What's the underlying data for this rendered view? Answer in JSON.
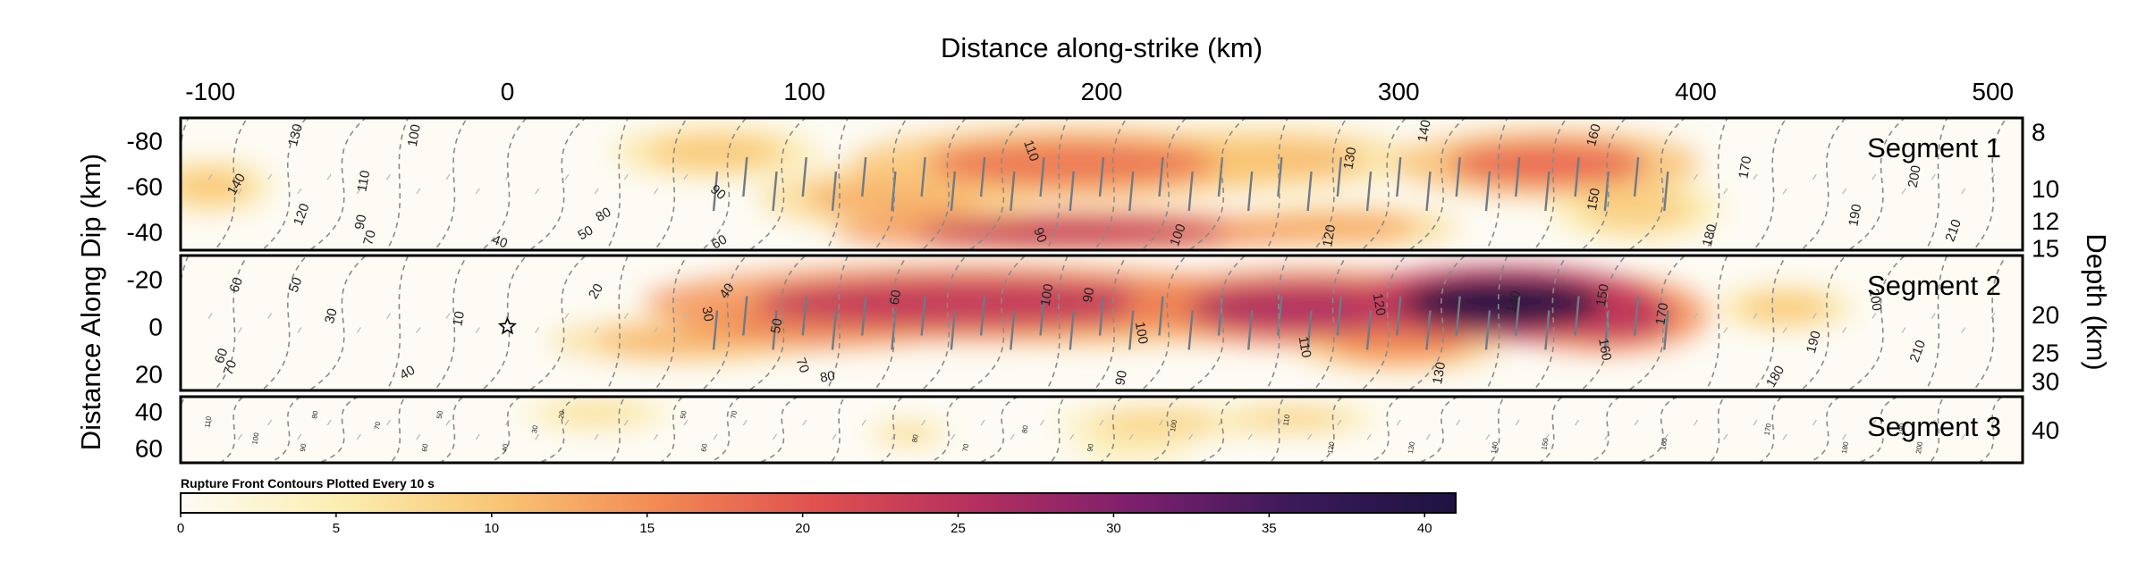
{
  "chart_data": {
    "type": "heatmap",
    "title": "",
    "xlabel": "Distance along-strike (km)",
    "ylabel_left": "Distance Along Dip (km)",
    "ylabel_right": "Depth (km)",
    "xlim": [
      -110,
      510
    ],
    "x_ticks": [
      -100,
      0,
      100,
      200,
      300,
      400,
      500
    ],
    "colorbar": {
      "title": "Rupture Front Contours Plotted Every 10 s",
      "range": [
        0,
        41
      ],
      "ticks": [
        0,
        5,
        10,
        15,
        20,
        25,
        30,
        35,
        40
      ],
      "colors": [
        "#fdfbf4",
        "#fbeeb0",
        "#f9c574",
        "#f28954",
        "#e0504f",
        "#b42f5f",
        "#7c1f6e",
        "#3a1a5a",
        "#1d1340"
      ]
    },
    "contour_interval_s": 10,
    "hypocenter": {
      "x_km": 0,
      "dip_km": 0,
      "marker": "star"
    },
    "panels": [
      {
        "name": "Segment 1",
        "dip_range": [
          -90,
          -32
        ],
        "dip_ticks": [
          -80,
          -60,
          -40
        ],
        "depth_ticks": [
          {
            "value": "8",
            "dip": -84
          },
          {
            "value": "10",
            "dip": -59
          },
          {
            "value": "12",
            "dip": -45
          },
          {
            "value": "15",
            "dip": -33
          }
        ],
        "slip_patches": [
          {
            "x": 190,
            "dip": -70,
            "sx": 65,
            "sdip": 14,
            "v": 17
          },
          {
            "x": 255,
            "dip": -72,
            "sx": 45,
            "sdip": 12,
            "v": 11
          },
          {
            "x": 350,
            "dip": -70,
            "sx": 45,
            "sdip": 13,
            "v": 18
          },
          {
            "x": 130,
            "dip": -55,
            "sx": 40,
            "sdip": 12,
            "v": 12
          },
          {
            "x": 190,
            "dip": -40,
            "sx": 70,
            "sdip": 8,
            "v": 24
          },
          {
            "x": 280,
            "dip": -42,
            "sx": 35,
            "sdip": 8,
            "v": 13
          },
          {
            "x": 380,
            "dip": -50,
            "sx": 25,
            "sdip": 12,
            "v": 9
          },
          {
            "x": -100,
            "dip": -60,
            "sx": 18,
            "sdip": 10,
            "v": 10
          },
          {
            "x": 70,
            "dip": -75,
            "sx": 30,
            "sdip": 10,
            "v": 10
          }
        ],
        "contour_labels": [
          {
            "t": "140",
            "x": -90,
            "dip": -60,
            "rot": -60
          },
          {
            "t": "130",
            "x": -70,
            "dip": -82,
            "rot": -75
          },
          {
            "t": "100",
            "x": -30,
            "dip": -82,
            "rot": -80
          },
          {
            "t": "110",
            "x": -47,
            "dip": -62,
            "rot": -80
          },
          {
            "t": "120",
            "x": -68,
            "dip": -47,
            "rot": -70
          },
          {
            "t": "90",
            "x": -48,
            "dip": -44,
            "rot": -80
          },
          {
            "t": "70",
            "x": -45,
            "dip": -37,
            "rot": -75
          },
          {
            "t": "40",
            "x": -3,
            "dip": -34,
            "rot": 20
          },
          {
            "t": "50",
            "x": 27,
            "dip": -38,
            "rot": -30
          },
          {
            "t": "80",
            "x": 33,
            "dip": -46,
            "rot": -30
          },
          {
            "t": "60",
            "x": 72,
            "dip": -34,
            "rot": -30
          },
          {
            "t": "90",
            "x": 70,
            "dip": -56,
            "rot": 40
          },
          {
            "t": "90",
            "x": 178,
            "dip": -38,
            "rot": 70
          },
          {
            "t": "110",
            "x": 175,
            "dip": -75,
            "rot": 70
          },
          {
            "t": "100",
            "x": 227,
            "dip": -38,
            "rot": -70
          },
          {
            "t": "120",
            "x": 278,
            "dip": -38,
            "rot": -80
          },
          {
            "t": "130",
            "x": 285,
            "dip": -72,
            "rot": -80
          },
          {
            "t": "140",
            "x": 310,
            "dip": -84,
            "rot": -80
          },
          {
            "t": "150",
            "x": 367,
            "dip": -54,
            "rot": -80
          },
          {
            "t": "160",
            "x": 367,
            "dip": -82,
            "rot": -75
          },
          {
            "t": "170",
            "x": 418,
            "dip": -68,
            "rot": -80
          },
          {
            "t": "180",
            "x": 406,
            "dip": -38,
            "rot": -75
          },
          {
            "t": "190",
            "x": 455,
            "dip": -47,
            "rot": -80
          },
          {
            "t": "200",
            "x": 475,
            "dip": -64,
            "rot": -80
          },
          {
            "t": "210",
            "x": 488,
            "dip": -40,
            "rot": -70
          }
        ]
      },
      {
        "name": "Segment 2",
        "dip_range": [
          -30,
          27
        ],
        "dip_ticks": [
          -20,
          0,
          20
        ],
        "depth_ticks": [
          {
            "value": "20",
            "dip": -5
          },
          {
            "value": "25",
            "dip": 11
          },
          {
            "value": "30",
            "dip": 23
          }
        ],
        "slip_patches": [
          {
            "x": 155,
            "dip": -10,
            "sx": 95,
            "sdip": 14,
            "v": 24
          },
          {
            "x": 105,
            "dip": -2,
            "sx": 40,
            "sdip": 10,
            "v": 22
          },
          {
            "x": 270,
            "dip": -8,
            "sx": 55,
            "sdip": 14,
            "v": 26
          },
          {
            "x": 335,
            "dip": -10,
            "sx": 45,
            "sdip": 14,
            "v": 40
          },
          {
            "x": 370,
            "dip": -5,
            "sx": 30,
            "sdip": 14,
            "v": 25
          },
          {
            "x": 300,
            "dip": 8,
            "sx": 30,
            "sdip": 9,
            "v": 15
          },
          {
            "x": 200,
            "dip": -2,
            "sx": 50,
            "sdip": 9,
            "v": 12
          },
          {
            "x": 60,
            "dip": 6,
            "sx": 40,
            "sdip": 8,
            "v": 12
          },
          {
            "x": 430,
            "dip": -8,
            "sx": 20,
            "sdip": 8,
            "v": 10
          }
        ],
        "contour_labels": [
          {
            "t": "60",
            "x": -90,
            "dip": -17,
            "rot": -70
          },
          {
            "t": "50",
            "x": -70,
            "dip": -17,
            "rot": -70
          },
          {
            "t": "30",
            "x": -58,
            "dip": -4,
            "rot": -75
          },
          {
            "t": "70",
            "x": -92,
            "dip": 18,
            "rot": -70
          },
          {
            "t": "60",
            "x": -95,
            "dip": 13,
            "rot": -70
          },
          {
            "t": "40",
            "x": -33,
            "dip": 21,
            "rot": -30
          },
          {
            "t": "10",
            "x": -15,
            "dip": -3,
            "rot": -80
          },
          {
            "t": "20",
            "x": 31,
            "dip": -14,
            "rot": -60
          },
          {
            "t": "30",
            "x": 66,
            "dip": -5,
            "rot": 80
          },
          {
            "t": "40",
            "x": 75,
            "dip": -14,
            "rot": -55
          },
          {
            "t": "50",
            "x": 92,
            "dip": 0,
            "rot": -80
          },
          {
            "t": "60",
            "x": 132,
            "dip": -12,
            "rot": -80
          },
          {
            "t": "70",
            "x": 98,
            "dip": 17,
            "rot": 70
          },
          {
            "t": "80",
            "x": 108,
            "dip": 23,
            "rot": -10
          },
          {
            "t": "100",
            "x": 183,
            "dip": -13,
            "rot": -80
          },
          {
            "t": "90",
            "x": 197,
            "dip": -13,
            "rot": -80
          },
          {
            "t": "100",
            "x": 212,
            "dip": 3,
            "rot": 80
          },
          {
            "t": "90",
            "x": 208,
            "dip": 22,
            "rot": -80
          },
          {
            "t": "110",
            "x": 267,
            "dip": 9,
            "rot": 80
          },
          {
            "t": "120",
            "x": 292,
            "dip": -9,
            "rot": 80
          },
          {
            "t": "140",
            "x": 340,
            "dip": -10,
            "rot": -75
          },
          {
            "t": "150",
            "x": 370,
            "dip": -13,
            "rot": -80
          },
          {
            "t": "160",
            "x": 368,
            "dip": 10,
            "rot": 80
          },
          {
            "t": "130",
            "x": 315,
            "dip": 20,
            "rot": -80
          },
          {
            "t": "170",
            "x": 390,
            "dip": -5,
            "rot": -80
          },
          {
            "t": "180",
            "x": 428,
            "dip": 22,
            "rot": -60
          },
          {
            "t": "190",
            "x": 441,
            "dip": 7,
            "rot": -75
          },
          {
            "t": "200",
            "x": 459,
            "dip": -11,
            "rot": 80
          },
          {
            "t": "210",
            "x": 476,
            "dip": 11,
            "rot": -70
          }
        ]
      },
      {
        "name": "Segment 3",
        "dip_range": [
          32,
          68
        ],
        "dip_ticks": [
          40,
          60
        ],
        "depth_ticks": [
          {
            "value": "40",
            "dip": 50
          }
        ],
        "slip_patches": [
          {
            "x": 220,
            "dip": 46,
            "sx": 30,
            "sdip": 8,
            "v": 9
          },
          {
            "x": 264,
            "dip": 44,
            "sx": 25,
            "sdip": 7,
            "v": 9
          },
          {
            "x": 30,
            "dip": 41,
            "sx": 22,
            "sdip": 8,
            "v": 7
          },
          {
            "x": 135,
            "dip": 52,
            "sx": 12,
            "sdip": 6,
            "v": 8
          },
          {
            "x": 210,
            "dip": 60,
            "sx": 20,
            "sdip": 6,
            "v": 6
          }
        ],
        "contour_labels": [
          {
            "t": "110",
            "x": -100,
            "dip": 46,
            "rot": -80
          },
          {
            "t": "100",
            "x": -84,
            "dip": 55,
            "rot": -80
          },
          {
            "t": "80",
            "x": -64,
            "dip": 42,
            "rot": -80
          },
          {
            "t": "90",
            "x": -68,
            "dip": 60,
            "rot": -80
          },
          {
            "t": "70",
            "x": -43,
            "dip": 48,
            "rot": -80
          },
          {
            "t": "50",
            "x": -22,
            "dip": 42,
            "rot": -80
          },
          {
            "t": "60",
            "x": -27,
            "dip": 60,
            "rot": -80
          },
          {
            "t": "40",
            "x": 0,
            "dip": 60,
            "rot": -80
          },
          {
            "t": "20",
            "x": 19,
            "dip": 42,
            "rot": -80
          },
          {
            "t": "30",
            "x": 10,
            "dip": 50,
            "rot": -80
          },
          {
            "t": "50",
            "x": 60,
            "dip": 42,
            "rot": -80
          },
          {
            "t": "60",
            "x": 67,
            "dip": 60,
            "rot": -80
          },
          {
            "t": "70",
            "x": 77,
            "dip": 42,
            "rot": -80
          },
          {
            "t": "80",
            "x": 138,
            "dip": 55,
            "rot": -80
          },
          {
            "t": "70",
            "x": 155,
            "dip": 60,
            "rot": -80
          },
          {
            "t": "80",
            "x": 175,
            "dip": 50,
            "rot": -80
          },
          {
            "t": "90",
            "x": 197,
            "dip": 60,
            "rot": -80
          },
          {
            "t": "100",
            "x": 225,
            "dip": 48,
            "rot": -80
          },
          {
            "t": "110",
            "x": 263,
            "dip": 45,
            "rot": -80
          },
          {
            "t": "120",
            "x": 278,
            "dip": 60,
            "rot": -80
          },
          {
            "t": "130",
            "x": 305,
            "dip": 60,
            "rot": -80
          },
          {
            "t": "140",
            "x": 333,
            "dip": 60,
            "rot": -80
          },
          {
            "t": "150",
            "x": 350,
            "dip": 58,
            "rot": -80
          },
          {
            "t": "160",
            "x": 390,
            "dip": 58,
            "rot": -80
          },
          {
            "t": "170",
            "x": 425,
            "dip": 50,
            "rot": -80
          },
          {
            "t": "180",
            "x": 451,
            "dip": 60,
            "rot": -80
          },
          {
            "t": "190",
            "x": 470,
            "dip": 50,
            "rot": -80
          },
          {
            "t": "200",
            "x": 476,
            "dip": 60,
            "rot": -80
          }
        ]
      }
    ]
  }
}
